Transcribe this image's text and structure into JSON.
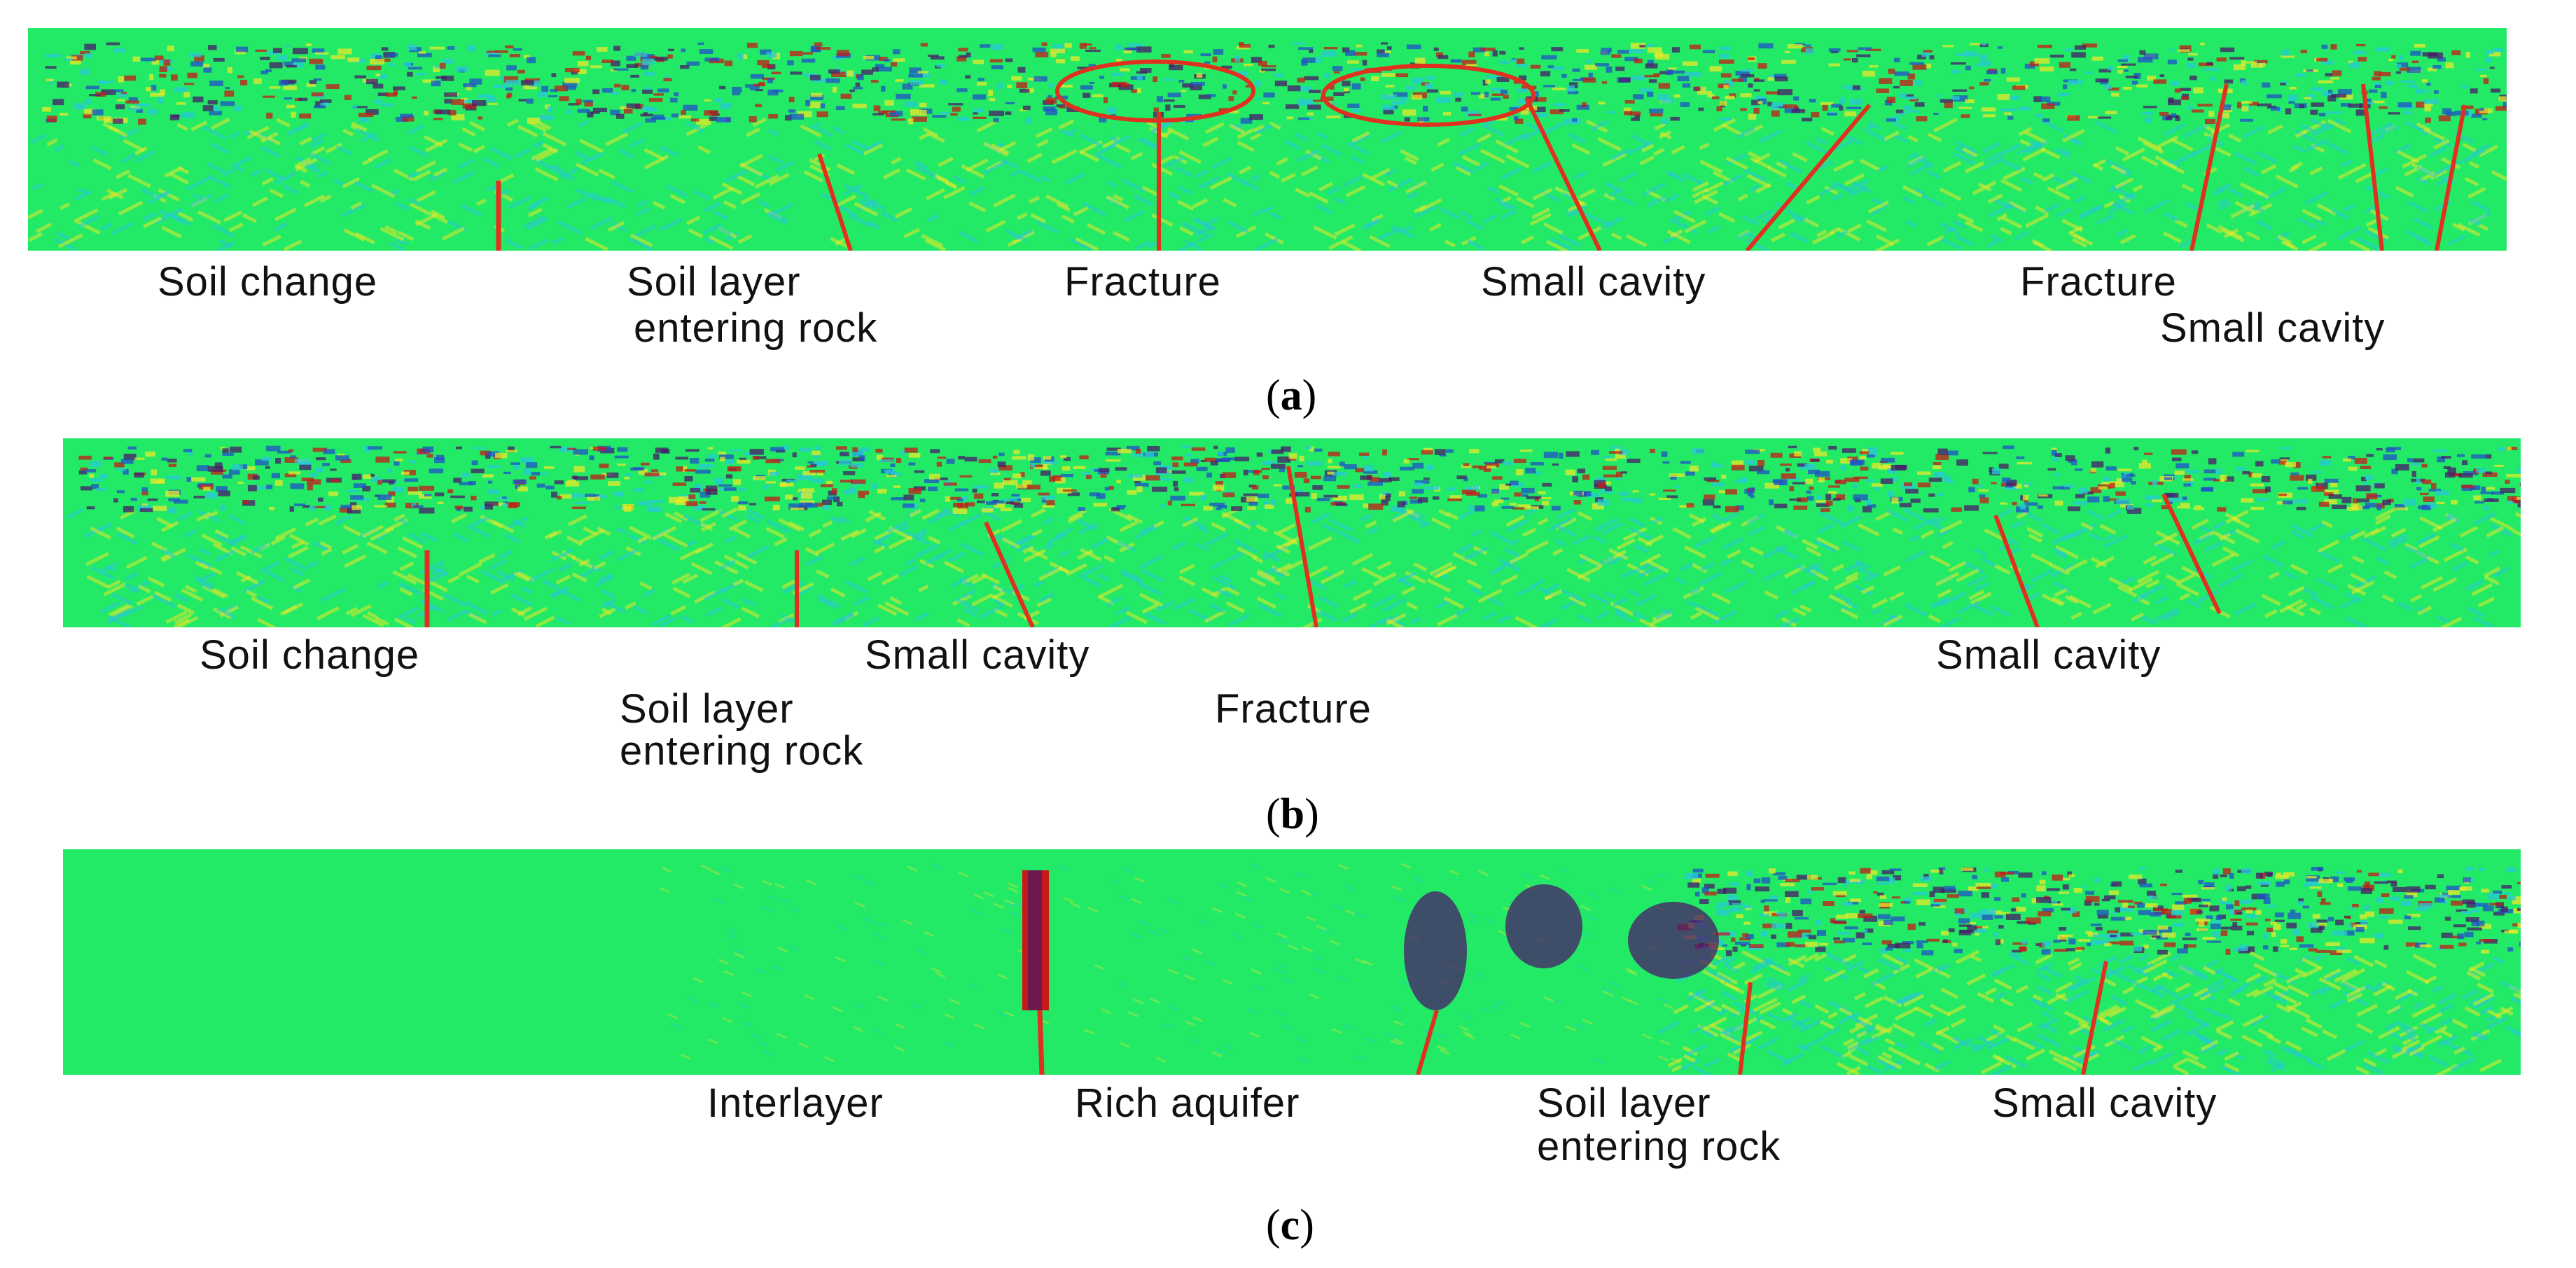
{
  "panels": [
    {
      "id": "a",
      "caption_letter": "a",
      "labels": [
        {
          "text": "Soil change"
        },
        {
          "text": "Soil layer"
        },
        {
          "text": "entering rock"
        },
        {
          "text": "Fracture"
        },
        {
          "text": "Small cavity"
        },
        {
          "text": "Fracture"
        },
        {
          "text": "Small cavity"
        }
      ]
    },
    {
      "id": "b",
      "caption_letter": "b",
      "labels": [
        {
          "text": "Soil change"
        },
        {
          "text": "Small cavity"
        },
        {
          "text": "Small cavity"
        },
        {
          "text": "Soil layer"
        },
        {
          "text": "entering rock"
        },
        {
          "text": "Fracture"
        }
      ]
    },
    {
      "id": "c",
      "caption_letter": "c",
      "labels": [
        {
          "text": "Interlayer"
        },
        {
          "text": "Rich aquifer"
        },
        {
          "text": "Soil layer"
        },
        {
          "text": "entering rock"
        },
        {
          "text": "Small cavity"
        }
      ]
    }
  ],
  "colors": {
    "background_field": "#22ea66",
    "leader_line": "#e03020",
    "marker_ellipse": "#e03020",
    "anomaly_dark": "#4a1a6a",
    "anomaly_red": "#c81818",
    "anomaly_yellow": "#e8e82a",
    "anomaly_cyan": "#28c8d8",
    "anomaly_blue": "#2050c8"
  }
}
